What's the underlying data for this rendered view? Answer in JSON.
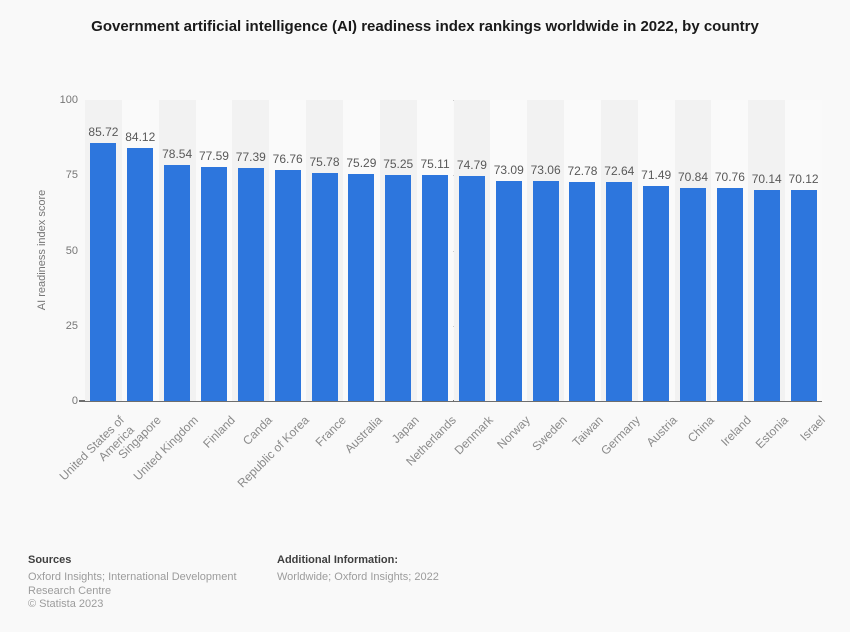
{
  "title": "Government artificial intelligence (AI) readiness index rankings worldwide in 2022, by country",
  "chart_data": {
    "type": "bar",
    "title": "Government artificial intelligence (AI) readiness index rankings worldwide in 2022, by country",
    "xlabel": "",
    "ylabel": "AI readiness index score",
    "ylim": [
      0,
      100
    ],
    "yticks": [
      0,
      25,
      50,
      75,
      100
    ],
    "grid": "horizontal-dotted",
    "legend": "none",
    "bar_color": "#2d76dd",
    "band_color_odd": "#f2f2f2",
    "band_color_even": "#fafafa",
    "categories": [
      "United States of America",
      "Singapore",
      "United Kingdom",
      "Finland",
      "Canda",
      "Republic of Korea",
      "France",
      "Australia",
      "Japan",
      "Netherlands",
      "Denmark",
      "Norway",
      "Sweden",
      "Taiwan",
      "Germany",
      "Austria",
      "China",
      "Ireland",
      "Estonia",
      "Israel"
    ],
    "values": [
      85.72,
      84.12,
      78.54,
      77.59,
      77.39,
      76.76,
      75.78,
      75.29,
      75.25,
      75.11,
      74.79,
      73.09,
      73.06,
      72.78,
      72.64,
      71.49,
      70.84,
      70.76,
      70.14,
      70.12
    ]
  },
  "footer": {
    "sources_heading": "Sources",
    "sources_text": "Oxford Insights; International Development Research Centre",
    "copyright": "© Statista 2023",
    "additional_heading": "Additional Information:",
    "additional_text": "Worldwide; Oxford Insights; 2022"
  }
}
